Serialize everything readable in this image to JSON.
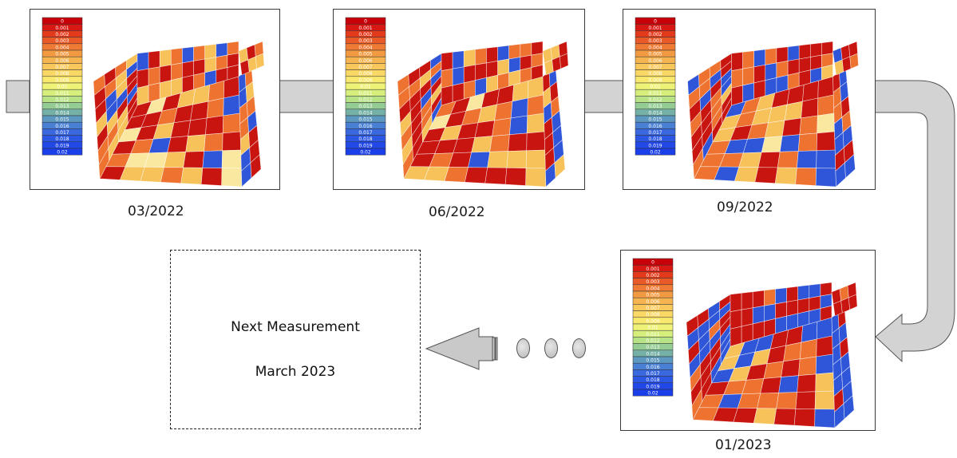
{
  "legend_labels": [
    "0",
    "0.001",
    "0.002",
    "0.003",
    "0.004",
    "0.005",
    "0.006",
    "0.007",
    "0.008",
    "0.009",
    "0.01",
    "0.011",
    "0.012",
    "0.013",
    "0.014",
    "0.015",
    "0.016",
    "0.017",
    "0.018",
    "0.019",
    "0.02"
  ],
  "legend_colors": [
    "#c8000a",
    "#d81812",
    "#e43a1c",
    "#ea5a28",
    "#ee7a34",
    "#f29a42",
    "#f5b450",
    "#f8c85c",
    "#fad866",
    "#f8e86e",
    "#eef276",
    "#d6ee7c",
    "#b8e286",
    "#94cc94",
    "#74b0a6",
    "#5c98c0",
    "#4a80d4",
    "#3a68de",
    "#2c56e4",
    "#2248e8",
    "#1a3ee8"
  ],
  "heatmap_palette": {
    "hot": "#c8150f",
    "warm": "#ef7330",
    "mid": "#f7c25a",
    "pale": "#fae8a0",
    "cold": "#2f55d8",
    "grid": "#ffffff"
  },
  "measurements": [
    {
      "date": "03/2022"
    },
    {
      "date": "06/2022"
    },
    {
      "date": "09/2022"
    },
    {
      "date": "01/2023"
    }
  ],
  "next": {
    "line1": "Next Measurement",
    "line2": "March 2023"
  },
  "flow_color": "#d3d3d3"
}
